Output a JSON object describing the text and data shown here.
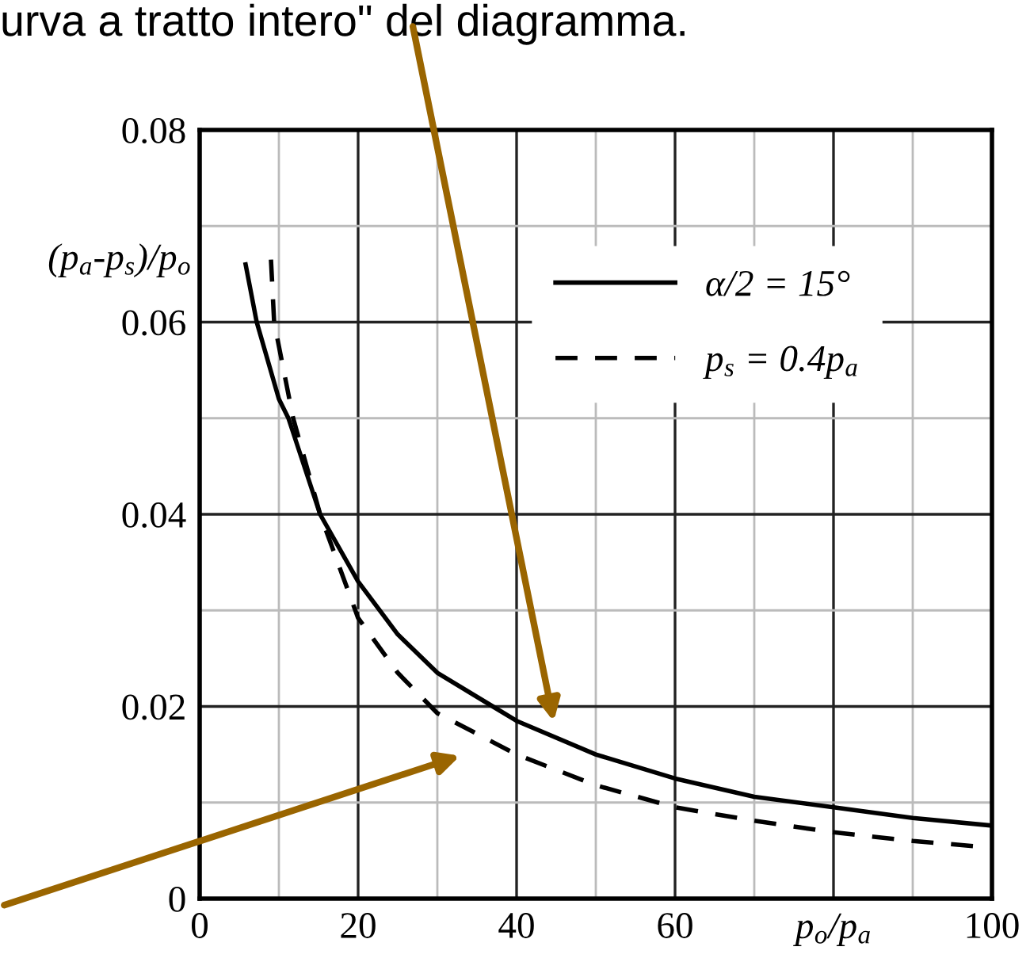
{
  "chart_data": {
    "type": "line",
    "xlabel": "p$_{o}$/p$_{a}$",
    "ylabel": "(p$_{a}$-p$_{s}$)/p$_{o}$",
    "annotations": [
      "urva a tratto intero\" del diagramma."
    ],
    "xlim": [
      0,
      100
    ],
    "ylim": [
      0,
      0.08
    ],
    "xticks": [
      0,
      20,
      40,
      60,
      {
        "value": 80,
        "label": null
      },
      100
    ],
    "yticks": [
      0,
      0.02,
      0.04,
      0.06,
      0.08
    ],
    "grid": true,
    "legend": "top right",
    "marker": "none",
    "series": [
      {
        "name": "α/2 = 15°",
        "color": "#000000",
        "line_style": "solid",
        "x": [
          5.8,
          7.2,
          10,
          11.2,
          15.2,
          20,
          25,
          30,
          37,
          40,
          50,
          60,
          70,
          80,
          90,
          100
        ],
        "values": [
          0.066,
          0.06,
          0.052,
          0.05,
          0.04,
          0.033,
          0.0275,
          0.0235,
          0.02,
          0.0185,
          0.015,
          0.0125,
          0.0106,
          0.0095,
          0.0084,
          0.0076
        ]
      },
      {
        "name": "p$_{s}$ = 0.4p$_{a}$",
        "color": "#000000",
        "line_style": "dashed",
        "x": [
          9,
          9.4,
          11.8,
          15.2,
          20,
          25,
          30,
          40,
          50,
          60,
          70,
          80,
          90,
          100
        ],
        "values": [
          0.0665,
          0.06,
          0.05,
          0.04,
          0.0292,
          0.0235,
          0.0193,
          0.015,
          0.0118,
          0.0095,
          0.0081,
          0.0069,
          0.006,
          0.0053
        ]
      }
    ]
  }
}
